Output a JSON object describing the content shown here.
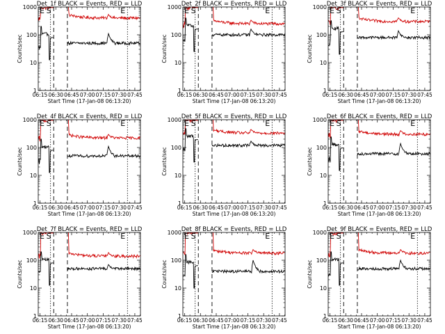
{
  "chart_data": {
    "type": "line",
    "x_tick_labels": [
      "06:15",
      "06:30",
      "06:45",
      "07:00",
      "07:15",
      "07:30",
      "07:45"
    ],
    "x_tick_minutes_from_0613_20": [
      1.67,
      16.67,
      31.67,
      46.67,
      61.67,
      76.67,
      91.67
    ],
    "xlabel": "Start Time (17-Jan-08 06:13:20)",
    "ylabel": "Counts/sec",
    "y_tick_labels": [
      "1",
      "10",
      "100",
      "1000"
    ],
    "ylim": [
      1,
      1000
    ],
    "y_scale": "log",
    "series_colors": {
      "events": "#000000",
      "lld": "#d00000"
    },
    "markers": {
      "E_left_label": "E",
      "S_label": "S",
      "E_right_label": "E",
      "S_line_time": "06:25",
      "gap_start": "06:28",
      "gap_end": "06:41",
      "E_right_time": "07:38"
    },
    "panels": [
      {
        "title": "Det_1f BLACK = Events, RED = LLD",
        "events_level": 50,
        "lld_level": 400,
        "peak_time": "07:20",
        "peak_value": 110
      },
      {
        "title": "Det_2f BLACK = Events, RED = LLD",
        "events_level": 100,
        "lld_level": 250,
        "peak_time": "07:18",
        "peak_value": 160
      },
      {
        "title": "Det_3f BLACK = Events, RED = LLD",
        "events_level": 80,
        "lld_level": 300,
        "peak_time": "07:20",
        "peak_value": 140
      },
      {
        "title": "Det_4f BLACK = Events, RED = LLD",
        "events_level": 50,
        "lld_level": 220,
        "peak_time": "07:20",
        "peak_value": 110
      },
      {
        "title": "Det_5f BLACK = Events, RED = LLD",
        "events_level": 120,
        "lld_level": 330,
        "peak_time": "07:18",
        "peak_value": 170
      },
      {
        "title": "Det_6f BLACK = Events, RED = LLD",
        "events_level": 60,
        "lld_level": 300,
        "peak_time": "07:22",
        "peak_value": 140
      },
      {
        "title": "Det_7f BLACK = Events, RED = LLD",
        "events_level": 50,
        "lld_level": 140,
        "peak_time": "07:20",
        "peak_value": 70
      },
      {
        "title": "Det_8f BLACK = Events, RED = LLD",
        "events_level": 40,
        "lld_level": 180,
        "peak_time": "07:20",
        "peak_value": 100
      },
      {
        "title": "Det_9f BLACK = Events, RED = LLD",
        "events_level": 50,
        "lld_level": 180,
        "peak_time": "07:22",
        "peak_value": 100
      }
    ]
  }
}
